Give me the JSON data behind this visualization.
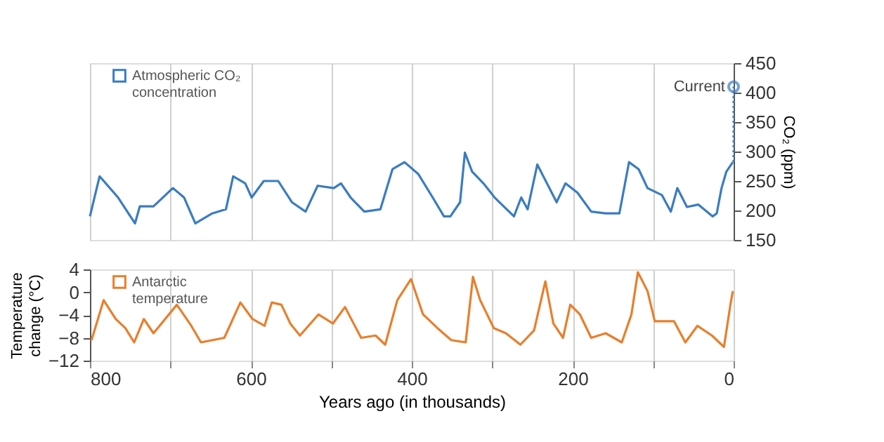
{
  "chart_data": [
    {
      "type": "line",
      "xlim": [
        800,
        0
      ],
      "xticks": [
        800,
        {
          "value": 700,
          "label": null
        },
        600,
        {
          "value": 500,
          "label": null
        },
        400,
        {
          "value": 300,
          "label": null
        },
        200,
        {
          "value": 100,
          "label": null
        },
        0
      ],
      "y2lim": [
        150,
        450
      ],
      "y2ticks": [
        150,
        200,
        250,
        300,
        350,
        400,
        450
      ],
      "y2label": "CO₂ (ppm)",
      "tick_labels": "y",
      "grid": "x",
      "legend": "top left",
      "series": [
        {
          "name": "Atmospheric CO₂ concentration",
          "color": "#3a7cc1",
          "axis": "y2",
          "x": [
            800,
            788,
            765,
            744,
            738,
            721,
            697,
            683,
            669,
            648,
            631,
            622,
            607,
            599,
            584,
            566,
            549,
            532,
            517,
            497,
            488,
            476,
            459,
            439,
            424,
            409,
            392,
            374,
            360,
            352,
            340,
            334,
            325,
            311,
            297,
            273,
            264,
            256,
            244,
            229,
            220,
            209,
            194,
            177,
            159,
            142,
            130,
            118,
            107,
            89,
            78,
            70,
            58,
            44,
            26,
            21,
            15,
            9,
            1
          ],
          "values": [
            190,
            258,
            222,
            178,
            207,
            207,
            238,
            222,
            178,
            195,
            202,
            258,
            246,
            222,
            250,
            250,
            214,
            198,
            242,
            238,
            246,
            222,
            198,
            202,
            270,
            282,
            262,
            222,
            190,
            190,
            214,
            298,
            266,
            246,
            222,
            190,
            222,
            202,
            278,
            238,
            214,
            246,
            230,
            198,
            195,
            195,
            282,
            270,
            238,
            226,
            198,
            238,
            206,
            210,
            190,
            195,
            238,
            266,
            282
          ]
        },
        {
          "color": "#3a7cc1",
          "axis": "y2",
          "line_style": "dotted",
          "x": [
            0,
            0
          ],
          "values": [
            282,
            410
          ]
        }
      ],
      "annotations": [
        "Current"
      ]
    },
    {
      "type": "line",
      "xlim": [
        800,
        0
      ],
      "xticks": [
        800,
        {
          "value": 700,
          "label": null
        },
        600,
        {
          "value": 500,
          "label": null
        },
        400,
        {
          "value": 300,
          "label": null
        },
        200,
        {
          "value": 100,
          "label": null
        },
        0
      ],
      "ylim": [
        -12,
        4
      ],
      "yticks": [
        -12,
        -8,
        -4,
        0,
        4
      ],
      "xlabel": "Years ago (in thousands)",
      "ylabel": "Temperature change (°C)",
      "grid": "x",
      "legend": "top left",
      "series": [
        {
          "name": "Antarctic temperature",
          "color": "#e87f2c",
          "x": [
            798,
            783,
            768,
            756,
            745,
            733,
            721,
            692,
            674,
            662,
            633,
            613,
            598,
            583,
            574,
            562,
            551,
            539,
            516,
            498,
            483,
            463,
            445,
            433,
            418,
            401,
            386,
            368,
            351,
            333,
            324,
            315,
            298,
            283,
            265,
            248,
            234,
            224,
            212,
            203,
            191,
            177,
            159,
            139,
            127,
            119,
            107,
            98,
            74,
            60,
            45,
            27,
            12,
            4,
            1
          ],
          "values": [
            -8.4,
            -1.4,
            -4.7,
            -6.3,
            -8.8,
            -4.7,
            -7.2,
            -2.2,
            -5.9,
            -8.8,
            -8.0,
            -1.8,
            -4.7,
            -5.9,
            -1.8,
            -2.2,
            -5.5,
            -7.6,
            -3.9,
            -5.5,
            -2.6,
            -8.0,
            -7.6,
            -9.2,
            -1.4,
            2.3,
            -3.9,
            -6.3,
            -8.4,
            -8.8,
            2.7,
            -1.4,
            -6.3,
            -7.2,
            -9.2,
            -6.7,
            1.9,
            -5.5,
            -8.0,
            -2.2,
            -3.9,
            -8.0,
            -7.2,
            -8.8,
            -3.9,
            3.5,
            0.2,
            -5.1,
            -5.1,
            -8.8,
            -5.9,
            -7.6,
            -9.6,
            -2.2,
            0.2
          ]
        }
      ]
    }
  ]
}
